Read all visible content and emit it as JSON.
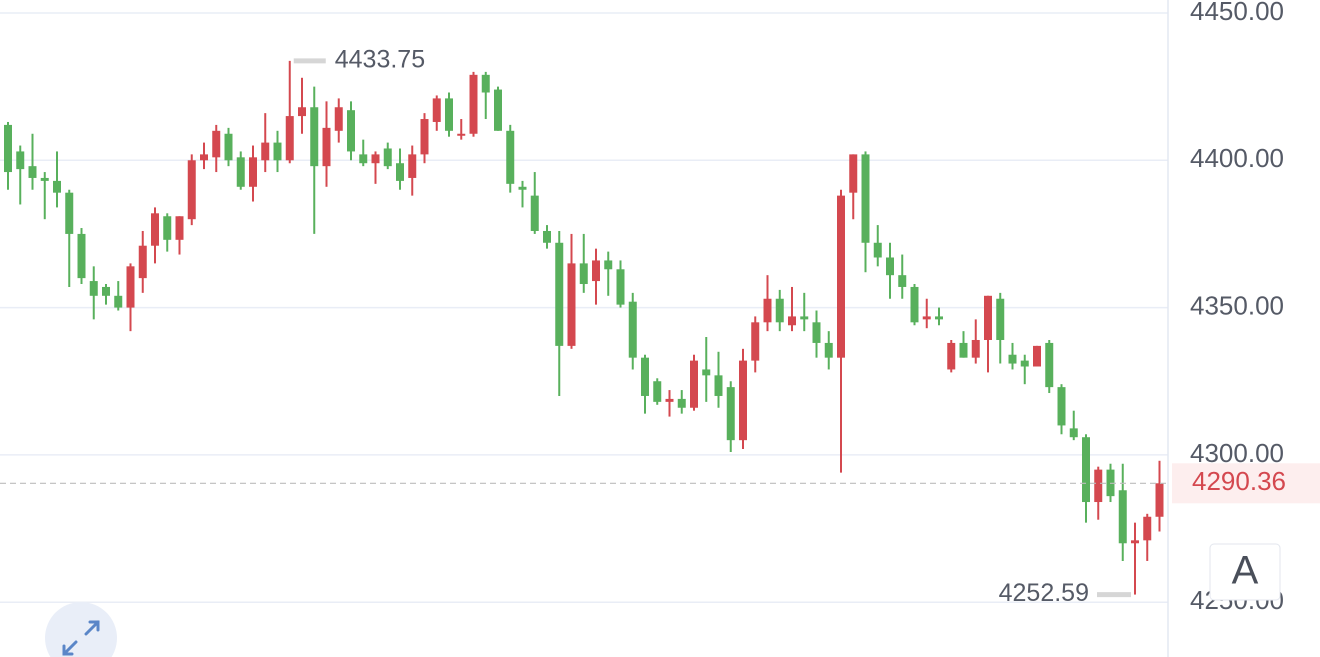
{
  "chart_data": {
    "type": "candlestick",
    "up_color": "#d4484f",
    "down_color": "#58b05c",
    "open": [
      4412,
      4403,
      4398,
      4394,
      4393,
      4389,
      4375,
      4359,
      4357,
      4354,
      4350,
      4360,
      4371,
      4381,
      4373,
      4380,
      4400,
      4401,
      4409,
      4401,
      4391,
      4400,
      4406,
      4400,
      4415,
      4418,
      4398,
      4410,
      4417,
      4402,
      4399,
      4404,
      4399,
      4394,
      4402,
      4413,
      4421,
      4409,
      4409,
      4429,
      4424,
      4410,
      4391,
      4388,
      4376,
      4372,
      4337,
      4365,
      4359,
      4366,
      4363,
      4352,
      4333,
      4325,
      4318,
      4319,
      4316,
      4329,
      4327,
      4323,
      4305,
      4332,
      4345,
      4353,
      4344,
      4347,
      4345,
      4338,
      4333,
      4389,
      4402,
      4372,
      4367,
      4361,
      4357,
      4346,
      4347,
      4329,
      4338,
      4333,
      4339,
      4353,
      4334,
      4332,
      4330,
      4338,
      4323,
      4309,
      4306,
      4284,
      4295,
      4288,
      4270,
      4271,
      4279
    ],
    "high": [
      4413,
      4405,
      4409,
      4396,
      4403,
      4390,
      4377,
      4364,
      4358,
      4359,
      4365,
      4376,
      4384,
      4382,
      4381,
      4402,
      4406,
      4412,
      4411,
      4403,
      4405,
      4416,
      4410,
      4433.75,
      4428,
      4425,
      4420,
      4421,
      4420,
      4407,
      4403,
      4406,
      4404,
      4405,
      4416,
      4422,
      4423,
      4414,
      4430,
      4430,
      4425,
      4412,
      4393,
      4396,
      4378,
      4376,
      4375,
      4375,
      4370,
      4369,
      4366,
      4355,
      4334,
      4326,
      4322,
      4322,
      4334,
      4340,
      4335,
      4325,
      4336,
      4347,
      4361,
      4356,
      4357,
      4355,
      4349,
      4342,
      4390,
      4402,
      4403,
      4378,
      4372,
      4368,
      4358,
      4353,
      4350,
      4339,
      4342,
      4346,
      4354,
      4355,
      4338,
      4334,
      4337,
      4339,
      4324,
      4315,
      4307,
      4296,
      4297,
      4297,
      4277,
      4280,
      4298
    ],
    "low": [
      4390,
      4385,
      4390,
      4380,
      4384,
      4357,
      4358,
      4346,
      4351,
      4349,
      4342,
      4355,
      4365,
      4369,
      4368,
      4378,
      4397,
      4396,
      4398,
      4390,
      4386,
      4396,
      4396,
      4399,
      4409,
      4375,
      4391,
      4406,
      4400,
      4398,
      4392,
      4397,
      4390,
      4388,
      4399,
      4410,
      4408,
      4407,
      4408,
      4414,
      4410,
      4389,
      4384,
      4375,
      4370,
      4320,
      4336,
      4355,
      4351,
      4354,
      4350,
      4329,
      4314,
      4317,
      4313,
      4314,
      4315,
      4318,
      4316,
      4301,
      4302,
      4328,
      4342,
      4342,
      4342,
      4342,
      4333,
      4329,
      4294,
      4380,
      4362,
      4364,
      4353,
      4353,
      4344,
      4343,
      4344,
      4328,
      4333,
      4331,
      4328,
      4331,
      4329,
      4324,
      4330,
      4321,
      4307,
      4305,
      4277,
      4278,
      4284,
      4264,
      4252.59,
      4264,
      4274
    ],
    "close": [
      4396,
      4397,
      4394,
      4393,
      4389,
      4375,
      4360,
      4354,
      4354,
      4350,
      4364,
      4371,
      4382,
      4373,
      4381,
      4400,
      4402,
      4410,
      4400,
      4391,
      4401,
      4406,
      4400,
      4415,
      4418,
      4398,
      4411,
      4418,
      4403,
      4399,
      4402,
      4398,
      4393,
      4402,
      4414,
      4421,
      4410,
      4409,
      4429,
      4423,
      4410,
      4392,
      4390,
      4376,
      4372,
      4337,
      4365,
      4358,
      4366,
      4363,
      4351,
      4333,
      4320,
      4318,
      4319,
      4316,
      4332,
      4327,
      4320,
      4305,
      4332,
      4345,
      4353,
      4345,
      4347,
      4346,
      4338,
      4333,
      4388,
      4402,
      4372,
      4367,
      4361,
      4357,
      4345,
      4347,
      4346,
      4338,
      4333,
      4339,
      4354,
      4339,
      4331,
      4330,
      4337,
      4323,
      4310,
      4306,
      4284,
      4295,
      4286,
      4270,
      4271,
      4279,
      4290.36
    ],
    "ylim": [
      4231.4,
      4454.4
    ],
    "yticks": [
      {
        "value": 4250,
        "label": "4250.00"
      },
      {
        "value": 4300,
        "label": "4300.00"
      },
      {
        "value": 4350,
        "label": "4350.00"
      },
      {
        "value": 4400,
        "label": "4400.00"
      },
      {
        "value": 4450,
        "label": "4450.00"
      }
    ],
    "grid": true
  },
  "controls": {
    "auto_scale": "A"
  }
}
